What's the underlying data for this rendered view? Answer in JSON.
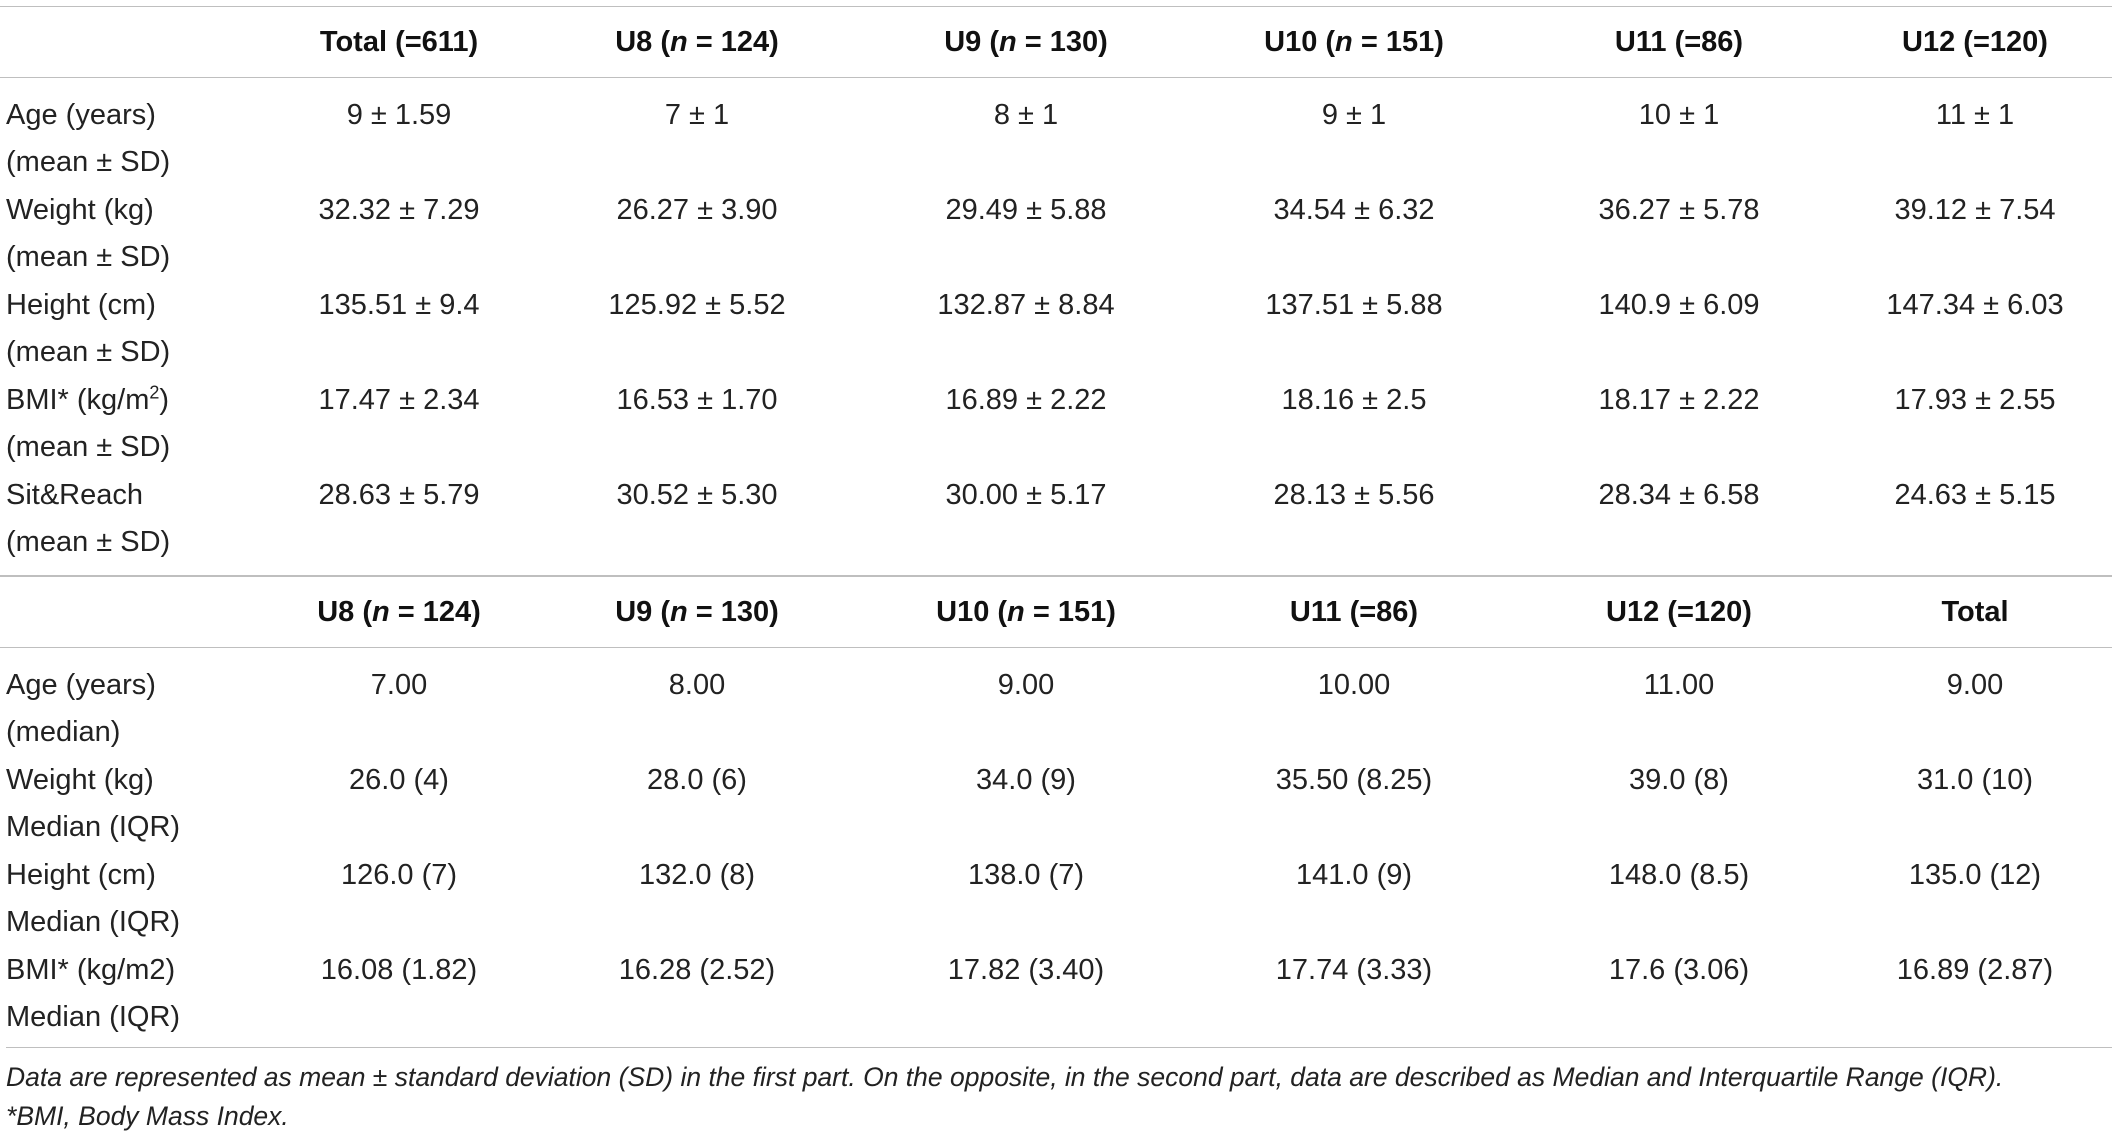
{
  "part1": {
    "headers": [
      {
        "pre": "",
        "n": "",
        "post": ""
      },
      {
        "pre": "Total (=611)",
        "n": "",
        "post": ""
      },
      {
        "pre": "U8 (",
        "n": "n",
        "post": " = 124)"
      },
      {
        "pre": "U9 (",
        "n": "n",
        "post": " = 130)"
      },
      {
        "pre": "U10 (",
        "n": "n",
        "post": " = 151)"
      },
      {
        "pre": "U11 (=86)",
        "n": "",
        "post": ""
      },
      {
        "pre": "U12 (=120)",
        "n": "",
        "post": ""
      }
    ],
    "rows": [
      {
        "label1": "Age (years)",
        "label2": "(mean ± SD)",
        "values": [
          "9 ± 1.59",
          "7 ± 1",
          "8 ± 1",
          "9 ± 1",
          "10 ± 1",
          "11 ± 1"
        ]
      },
      {
        "label1": "Weight (kg)",
        "label2": "(mean ± SD)",
        "values": [
          "32.32 ± 7.29",
          "26.27 ± 3.90",
          "29.49 ± 5.88",
          "34.54 ± 6.32",
          "36.27 ± 5.78",
          "39.12 ± 7.54"
        ]
      },
      {
        "label1": "Height (cm)",
        "label2": "(mean ± SD)",
        "values": [
          "135.51 ± 9.4",
          "125.92 ± 5.52",
          "132.87 ± 8.84",
          "137.51 ± 5.88",
          "140.9 ± 6.09",
          "147.34 ± 6.03"
        ]
      },
      {
        "label1": "BMI* (kg/m",
        "label1_sup": "2",
        "label1_post": ")",
        "label2": "(mean ± SD)",
        "values": [
          "17.47 ± 2.34",
          "16.53 ± 1.70",
          "16.89 ± 2.22",
          "18.16 ± 2.5",
          "18.17 ± 2.22",
          "17.93 ± 2.55"
        ]
      },
      {
        "label1": "Sit&Reach",
        "label2": "(mean ± SD)",
        "values": [
          "28.63 ± 5.79",
          "30.52 ± 5.30",
          "30.00 ± 5.17",
          "28.13 ± 5.56",
          "28.34 ± 6.58",
          "24.63 ± 5.15"
        ]
      }
    ]
  },
  "part2": {
    "headers": [
      {
        "pre": "",
        "n": "",
        "post": ""
      },
      {
        "pre": "U8 (",
        "n": "n",
        "post": " = 124)"
      },
      {
        "pre": "U9 (",
        "n": "n",
        "post": " = 130)"
      },
      {
        "pre": "U10 (",
        "n": "n",
        "post": " = 151)"
      },
      {
        "pre": "U11 (=86)",
        "n": "",
        "post": ""
      },
      {
        "pre": "U12 (=120)",
        "n": "",
        "post": ""
      },
      {
        "pre": "Total",
        "n": "",
        "post": ""
      }
    ],
    "rows": [
      {
        "label1": "Age (years)",
        "label2": "(median)",
        "values": [
          "7.00",
          "8.00",
          "9.00",
          "10.00",
          "11.00",
          "9.00"
        ]
      },
      {
        "label1": "Weight (kg)",
        "label2": "Median (IQR)",
        "values": [
          "26.0 (4)",
          "28.0 (6)",
          "34.0 (9)",
          "35.50 (8.25)",
          "39.0 (8)",
          "31.0 (10)"
        ]
      },
      {
        "label1": "Height (cm)",
        "label2": "Median (IQR)",
        "values": [
          "126.0 (7)",
          "132.0 (8)",
          "138.0 (7)",
          "141.0 (9)",
          "148.0 (8.5)",
          "135.0 (12)"
        ]
      },
      {
        "label1": "BMI* (kg/m2)",
        "label2": "Median (IQR)",
        "values": [
          "16.08 (1.82)",
          "16.28 (2.52)",
          "17.82 (3.40)",
          "17.74 (3.33)",
          "17.6 (3.06)",
          "16.89 (2.87)"
        ]
      }
    ]
  },
  "footnote": {
    "line1": "Data are represented as mean ± standard deviation (SD) in the first part. On the opposite, in the second part, data are described as Median and Interquartile Range (IQR).",
    "line2": "*BMI, Body Mass Index."
  }
}
